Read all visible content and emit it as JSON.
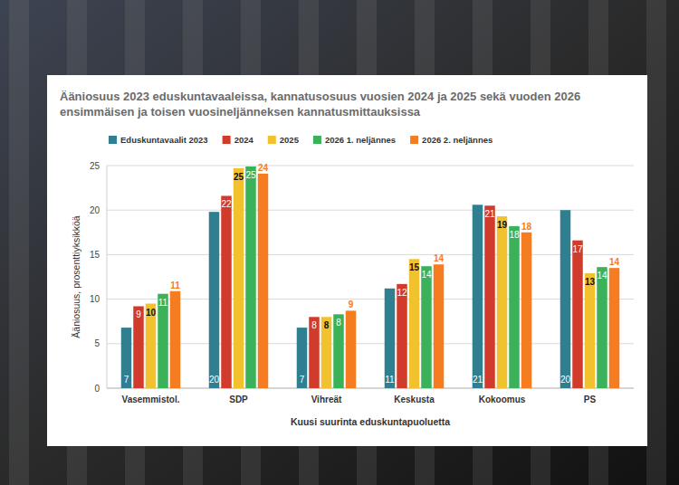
{
  "chart_data": {
    "type": "bar",
    "title": "Ääniosuus 2023 eduskuntavaaleissa, kannatusosuus vuosien 2024 ja 2025 sekä vuoden 2026 ensimmäisen ja toisen vuosineljänneksen kannatusmittauksissa",
    "x_label": "Kuusi suurinta eduskuntapuoluetta",
    "y_label": "Ääniosuus, prosenttiyksikköä",
    "categories": [
      "Vasemmistol.",
      "SDP",
      "Vihreät",
      "Keskusta",
      "Kokoomus",
      "PS"
    ],
    "series": [
      {
        "name": "Eduskuntavaalit 2023",
        "color": "#2f7f91",
        "values": [
          6.8,
          19.8,
          6.8,
          11.2,
          20.6,
          20.0
        ],
        "value_labels": [
          "7",
          "20",
          "7",
          "11",
          "21",
          "20"
        ]
      },
      {
        "name": "2024",
        "color": "#d13b2c",
        "values": [
          9.2,
          21.6,
          8.0,
          11.7,
          20.5,
          16.6
        ],
        "value_labels": [
          "9",
          "22",
          "8",
          "12",
          "21",
          "17"
        ]
      },
      {
        "name": "2025",
        "color": "#f2c12e",
        "values": [
          9.5,
          24.7,
          8.0,
          14.5,
          19.3,
          12.9
        ],
        "value_labels": [
          "10",
          "25",
          "8",
          "15",
          "19",
          "13"
        ]
      },
      {
        "name": "2026 1. neljännes",
        "color": "#3bb25a",
        "values": [
          10.6,
          24.9,
          8.3,
          13.7,
          18.2,
          13.6
        ],
        "value_labels": [
          "11",
          "25",
          "8",
          "14",
          "18",
          "14"
        ]
      },
      {
        "name": "2026 2. neljännes",
        "color": "#f57c20",
        "values": [
          10.9,
          24.1,
          8.7,
          13.9,
          17.5,
          13.5
        ],
        "value_labels": [
          "11",
          "24",
          "9",
          "14",
          "18",
          "14"
        ]
      }
    ],
    "ylim": [
      0,
      25
    ],
    "yticks": [
      0,
      5,
      10,
      15,
      20,
      25
    ],
    "grid": true,
    "legend": "top",
    "data_labels": true
  }
}
